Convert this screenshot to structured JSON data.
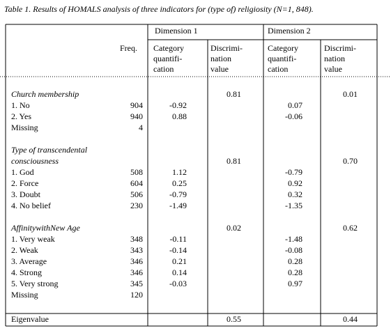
{
  "title": "Table 1. Results of HOMALS analysis of three indicators for (type of) religiosity (N=1, 848).",
  "header": {
    "dimensions": [
      "Dimension 1",
      "Dimension 2"
    ],
    "freq": "Freq.",
    "dimension_1": {
      "category": [
        "Category",
        "quantifi-",
        "cation"
      ],
      "discrimination": [
        "Discrimi-",
        "nation",
        "value"
      ]
    },
    "dimension_2": {
      "category": [
        "Category",
        "quantifi-",
        "cation"
      ],
      "discrimination": [
        "Discrimi-",
        "nation",
        "value"
      ]
    }
  },
  "sections": [
    {
      "title": [
        "Church membership"
      ],
      "discrimination": [
        "0.81",
        "0.01"
      ],
      "rows": [
        {
          "label": "1. No",
          "freq": "904",
          "dim1": "-0.92",
          "dim2": "0.07"
        },
        {
          "label": "2. Yes",
          "freq": "940",
          "dim1": "0.88",
          "dim2": "-0.06"
        },
        {
          "label": "Missing",
          "freq": "4"
        }
      ]
    },
    {
      "title": [
        "Type  of transcendental",
        "consciousness"
      ],
      "discrimination": [
        "0.81",
        "0.70"
      ],
      "rows": [
        {
          "label": "1. God",
          "freq": "508",
          "dim1": "1.12",
          "dim2": "-0.79"
        },
        {
          "label": "2. Force",
          "freq": "604",
          "dim1": "0.25",
          "dim2": "0.92"
        },
        {
          "label": "3. Doubt",
          "freq": "506",
          "dim1": "-0.79",
          "dim2": "0.32"
        },
        {
          "label": "4. No belief",
          "freq": "230",
          "dim1": "-1.49",
          "dim2": "-1.35"
        }
      ]
    },
    {
      "title": [
        "AffinitywithNew Age"
      ],
      "discrimination": [
        "0.02",
        "0.62"
      ],
      "rows": [
        {
          "label": "1. Very weak",
          "freq": "348",
          "dim1": "-0.11",
          "dim2": "-1.48"
        },
        {
          "label": "2. Weak",
          "freq": "343",
          "dim1": "-0.14",
          "dim2": "-0.08"
        },
        {
          "label": "3. Average",
          "freq": "346",
          "dim1": "0.21",
          "dim2": "0.28"
        },
        {
          "label": "4. Strong",
          "freq": "346",
          "dim1": "0.14",
          "dim2": "0.28"
        },
        {
          "label": "5. Very strong",
          "freq": "345",
          "dim1": "-0.03",
          "dim2": "0.97"
        },
        {
          "label": "Missing",
          "freq": "120"
        }
      ]
    }
  ],
  "footer": {
    "label": "Eigenvalue",
    "values": [
      "0.55",
      "0.44"
    ]
  }
}
